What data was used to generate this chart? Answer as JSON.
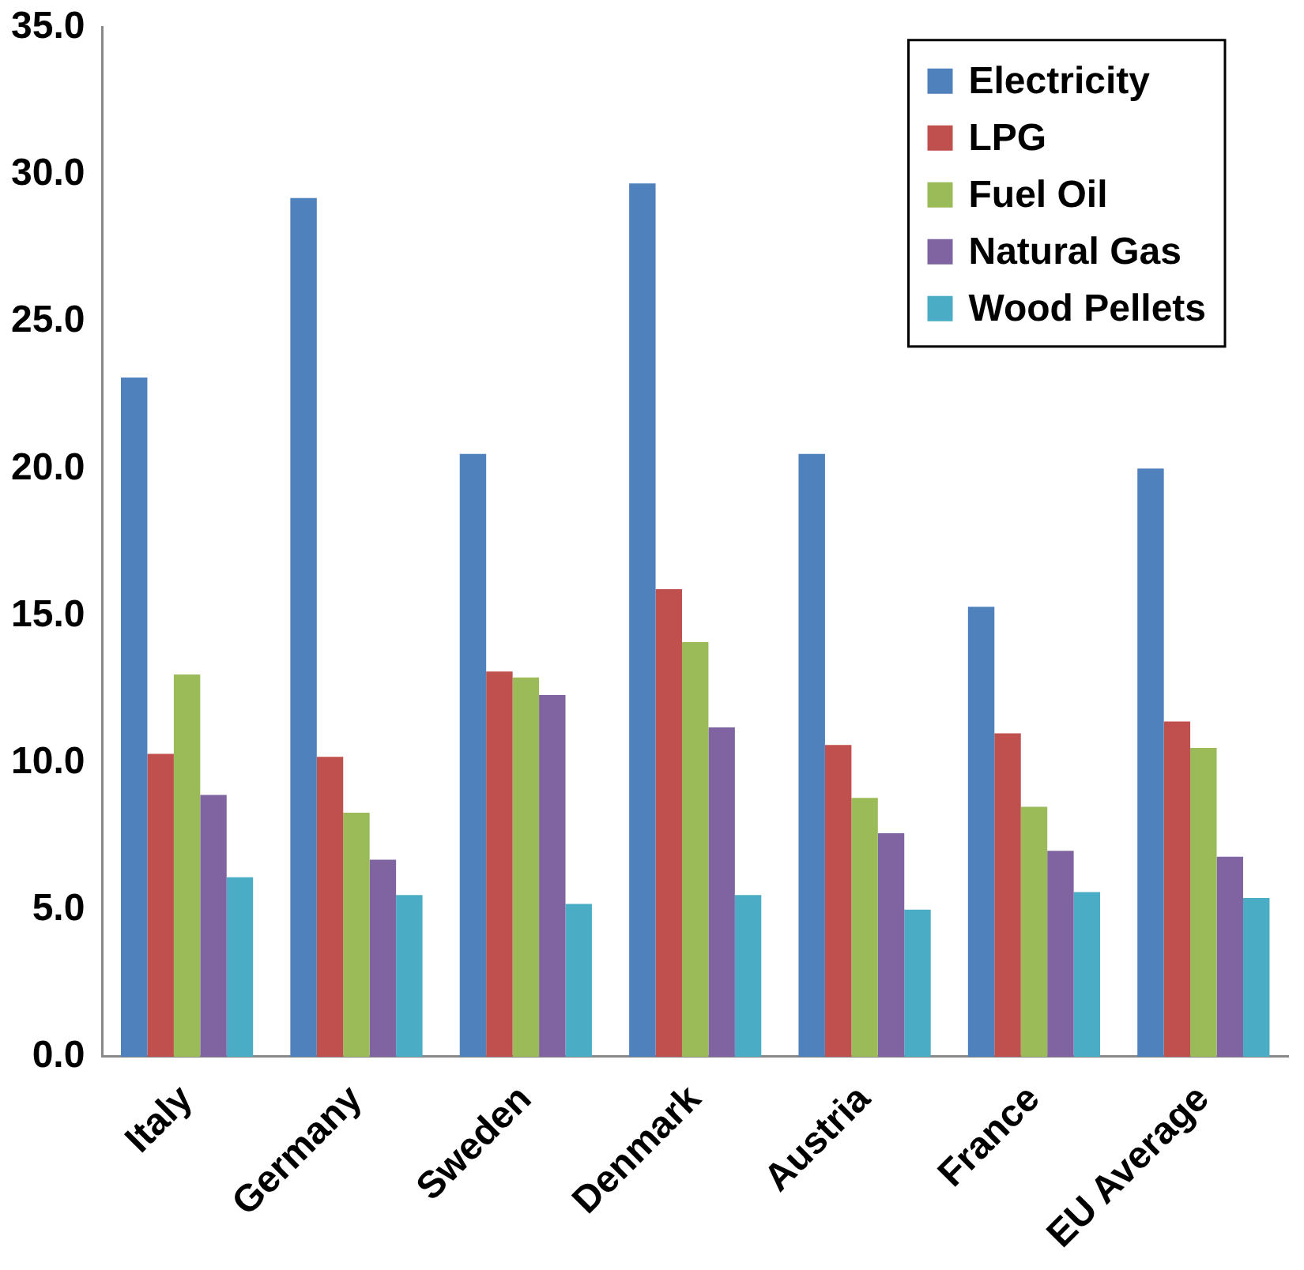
{
  "chart_data": {
    "type": "bar",
    "categories": [
      "Italy",
      "Germany",
      "Sweden",
      "Denmark",
      "Austria",
      "France",
      "EU Average"
    ],
    "series": [
      {
        "name": "Electricity",
        "color": "#4f81bd",
        "values": [
          23.1,
          29.2,
          20.5,
          29.7,
          20.5,
          15.3,
          20.0
        ]
      },
      {
        "name": "LPG",
        "color": "#c0504d",
        "values": [
          10.3,
          10.2,
          13.1,
          15.9,
          10.6,
          11.0,
          11.4
        ]
      },
      {
        "name": "Fuel Oil",
        "color": "#9bbb59",
        "values": [
          13.0,
          8.3,
          12.9,
          14.1,
          8.8,
          8.5,
          10.5
        ]
      },
      {
        "name": "Natural Gas",
        "color": "#8064a2",
        "values": [
          8.9,
          6.7,
          12.3,
          11.2,
          7.6,
          7.0,
          6.8
        ]
      },
      {
        "name": "Wood Pellets",
        "color": "#4bacc6",
        "values": [
          6.1,
          5.5,
          5.2,
          5.5,
          5.0,
          5.6,
          5.4
        ]
      }
    ],
    "ylim": [
      0,
      35
    ],
    "yticks": [
      {
        "value": 0,
        "label": "0.0"
      },
      {
        "value": 5,
        "label": "5.0"
      },
      {
        "value": 10,
        "label": "10.0"
      },
      {
        "value": 15,
        "label": "15.0"
      },
      {
        "value": 20,
        "label": "20.0"
      },
      {
        "value": 25,
        "label": "25.0"
      },
      {
        "value": 30,
        "label": "30.0"
      },
      {
        "value": 35,
        "label": "35.0"
      }
    ],
    "grid": false,
    "legend": "top right"
  }
}
